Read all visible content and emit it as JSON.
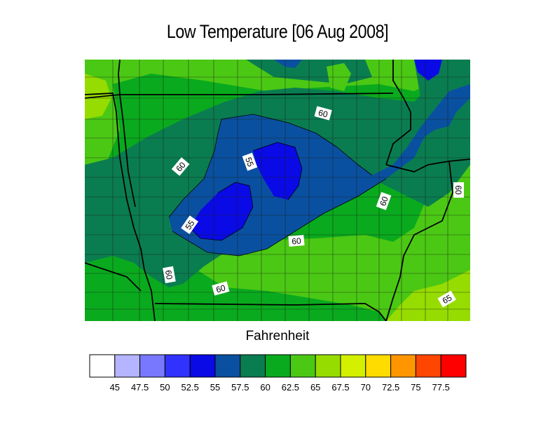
{
  "title": "Low Temperature [06 Aug 2008]",
  "units_label": "Fahrenheit",
  "colorbar": {
    "bins": [
      {
        "color": "#ffffff"
      },
      {
        "color": "#b4b4ff",
        "label": "45"
      },
      {
        "color": "#7878ff",
        "label": "47.5"
      },
      {
        "color": "#3232ff",
        "label": "50"
      },
      {
        "color": "#0a0ae6",
        "label": "52.5"
      },
      {
        "color": "#0a50a0",
        "label": "55"
      },
      {
        "color": "#0a7d50",
        "label": "57.5"
      },
      {
        "color": "#0aaa1e",
        "label": "60"
      },
      {
        "color": "#4bc814",
        "label": "62.5"
      },
      {
        "color": "#96dc00",
        "label": "65"
      },
      {
        "color": "#d2f000",
        "label": "67.5"
      },
      {
        "color": "#ffdc00",
        "label": "70"
      },
      {
        "color": "#ff9600",
        "label": "72.5"
      },
      {
        "color": "#ff4600",
        "label": "75"
      },
      {
        "color": "#ff0000",
        "label": "77.5"
      }
    ]
  },
  "contour_labels": [
    "60",
    "60",
    "55",
    "60",
    "60",
    "55",
    "60",
    "60",
    "60",
    "65"
  ],
  "colors": {
    "c55": "#0a50a0",
    "c57": "#0a7d50",
    "c60": "#0aaa1e",
    "c62": "#4bc814",
    "c65": "#96dc00"
  }
}
